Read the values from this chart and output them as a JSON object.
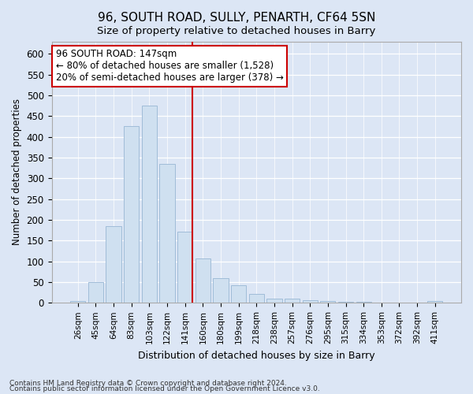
{
  "title": "96, SOUTH ROAD, SULLY, PENARTH, CF64 5SN",
  "subtitle": "Size of property relative to detached houses in Barry",
  "xlabel": "Distribution of detached houses by size in Barry",
  "ylabel": "Number of detached properties",
  "footnote1": "Contains HM Land Registry data © Crown copyright and database right 2024.",
  "footnote2": "Contains public sector information licensed under the Open Government Licence v3.0.",
  "bar_labels": [
    "26sqm",
    "45sqm",
    "64sqm",
    "83sqm",
    "103sqm",
    "122sqm",
    "141sqm",
    "160sqm",
    "180sqm",
    "199sqm",
    "218sqm",
    "238sqm",
    "257sqm",
    "276sqm",
    "295sqm",
    "315sqm",
    "334sqm",
    "353sqm",
    "372sqm",
    "392sqm",
    "411sqm"
  ],
  "bar_values": [
    5,
    50,
    185,
    425,
    475,
    335,
    172,
    107,
    60,
    43,
    22,
    10,
    10,
    6,
    5,
    2,
    2,
    1,
    1,
    0,
    5
  ],
  "bar_color": "#cfe0f0",
  "bar_edge_color": "#a0bcd8",
  "highlight_index": 6,
  "highlight_line_color": "#cc0000",
  "annotation_line1": "96 SOUTH ROAD: 147sqm",
  "annotation_line2": "← 80% of detached houses are smaller (1,528)",
  "annotation_line3": "20% of semi-detached houses are larger (378) →",
  "annotation_box_color": "#ffffff",
  "annotation_box_edge": "#cc0000",
  "ylim": [
    0,
    630
  ],
  "yticks": [
    0,
    50,
    100,
    150,
    200,
    250,
    300,
    350,
    400,
    450,
    500,
    550,
    600
  ],
  "background_color": "#dce6f5",
  "plot_background": "#dce6f5",
  "title_fontsize": 11,
  "subtitle_fontsize": 10
}
